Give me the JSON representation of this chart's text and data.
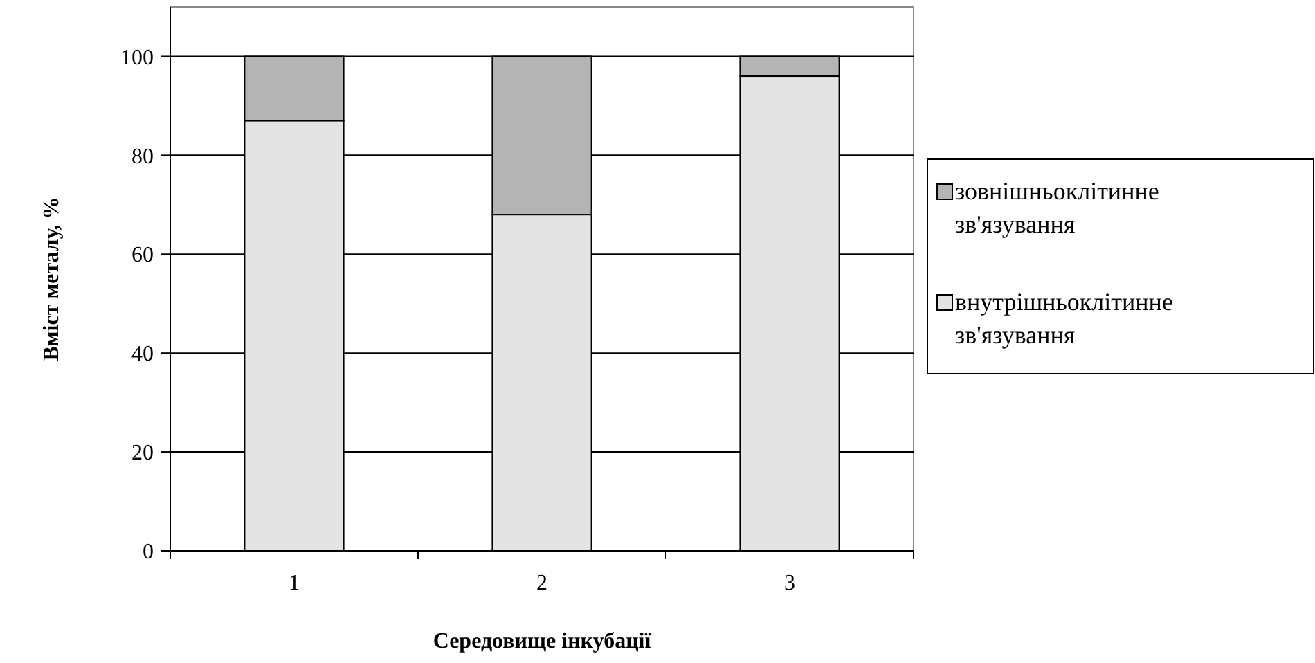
{
  "chart_data": {
    "type": "bar",
    "stacked": true,
    "xlabel": "Середовище інкубації",
    "ylabel": "Вміст металу,  %",
    "categories": [
      "1",
      "2",
      "3"
    ],
    "series": [
      {
        "name": "внутрішньоклітинне зв'язування",
        "color": "#e4e4e4",
        "values": [
          87,
          68,
          96
        ]
      },
      {
        "name": "зовнішньоклітинне зв'язування",
        "color": "#b4b4b4",
        "values": [
          13,
          32,
          4
        ]
      }
    ],
    "ylim": [
      0,
      110
    ],
    "yticks": [
      0,
      20,
      40,
      60,
      80,
      100
    ],
    "grid": "y",
    "legend": "right"
  }
}
